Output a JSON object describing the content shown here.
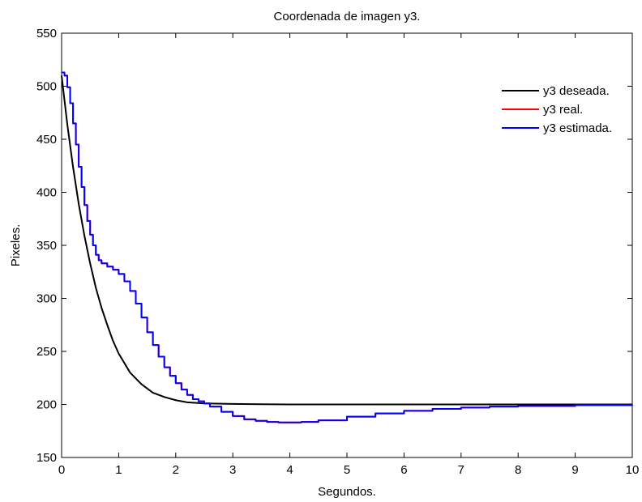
{
  "chart_data": {
    "type": "line",
    "title": "Coordenada de imagen y3.",
    "xlabel": "Segundos.",
    "ylabel": "Pixeles.",
    "xlim": [
      0,
      10
    ],
    "ylim": [
      150,
      550
    ],
    "xticks": [
      "0",
      "1",
      "2",
      "3",
      "4",
      "5",
      "6",
      "7",
      "8",
      "9",
      "10"
    ],
    "yticks": [
      "150",
      "200",
      "250",
      "300",
      "350",
      "400",
      "450",
      "500",
      "550"
    ],
    "grid": false,
    "legend_position": "top-right",
    "series": [
      {
        "name": "y3 deseada.",
        "color": "#000000",
        "style": "smooth",
        "x": [
          0,
          0.1,
          0.2,
          0.3,
          0.4,
          0.5,
          0.6,
          0.7,
          0.8,
          0.9,
          1.0,
          1.2,
          1.4,
          1.6,
          1.8,
          2.0,
          2.2,
          2.5,
          3.0,
          3.5,
          4,
          5,
          6,
          7,
          8,
          9,
          10
        ],
        "y": [
          510,
          464,
          424,
          389,
          359,
          333,
          310,
          291,
          275,
          260,
          248,
          230,
          219,
          211,
          207,
          204,
          202,
          201,
          200.5,
          200.2,
          200,
          200,
          200,
          200,
          200,
          200,
          200
        ]
      },
      {
        "name": "y3 real.",
        "color": "#ff0000",
        "style": "step",
        "x": [
          0,
          0.05,
          0.1,
          0.15,
          0.2,
          0.25,
          0.3,
          0.35,
          0.4,
          0.45,
          0.5,
          0.55,
          0.6,
          0.65,
          0.7,
          0.8,
          0.9,
          1.0,
          1.1,
          1.2,
          1.3,
          1.4,
          1.5,
          1.6,
          1.7,
          1.8,
          1.9,
          2.0,
          2.1,
          2.2,
          2.3,
          2.4,
          2.5,
          2.6,
          2.8,
          3.0,
          3.2,
          3.4,
          3.6,
          3.8,
          4.0,
          4.2,
          4.5,
          5.0,
          5.5,
          6.0,
          6.5,
          7.0,
          7.5,
          8.0,
          9.0,
          10.0
        ],
        "y": [
          513,
          510,
          499,
          484,
          465,
          445,
          424,
          405,
          388,
          373,
          360,
          350,
          341,
          336,
          333,
          330,
          327,
          323,
          316,
          307,
          295,
          282,
          268,
          256,
          245,
          235,
          227,
          220,
          214,
          209,
          205,
          203,
          201,
          198,
          193,
          189,
          186,
          184.5,
          183.5,
          183,
          183,
          183.5,
          185,
          188.5,
          191.5,
          194,
          195.8,
          197,
          198,
          198.6,
          199.3,
          199.6
        ]
      },
      {
        "name": "y3 estimada.",
        "color": "#0000ff",
        "style": "step",
        "x": [
          0,
          0.05,
          0.1,
          0.15,
          0.2,
          0.25,
          0.3,
          0.35,
          0.4,
          0.45,
          0.5,
          0.55,
          0.6,
          0.65,
          0.7,
          0.8,
          0.9,
          1.0,
          1.1,
          1.2,
          1.3,
          1.4,
          1.5,
          1.6,
          1.7,
          1.8,
          1.9,
          2.0,
          2.1,
          2.2,
          2.3,
          2.4,
          2.5,
          2.6,
          2.8,
          3.0,
          3.2,
          3.4,
          3.6,
          3.8,
          4.0,
          4.2,
          4.5,
          5.0,
          5.5,
          6.0,
          6.5,
          7.0,
          7.5,
          8.0,
          9.0,
          10.0
        ],
        "y": [
          513,
          510,
          499,
          484,
          465,
          445,
          424,
          405,
          388,
          373,
          360,
          350,
          341,
          336,
          333,
          330,
          327,
          323,
          316,
          307,
          295,
          282,
          268,
          256,
          245,
          235,
          227,
          220,
          214,
          209,
          205,
          203,
          201,
          198,
          193,
          189,
          186,
          184.5,
          183.5,
          183,
          183,
          183.5,
          185,
          188.5,
          191.5,
          194,
          195.8,
          197,
          198,
          198.6,
          199.3,
          199.6
        ]
      }
    ]
  }
}
